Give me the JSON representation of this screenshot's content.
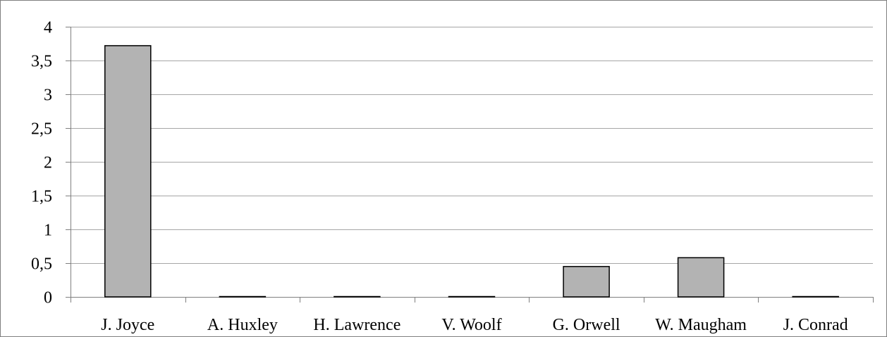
{
  "chart_data": {
    "type": "bar",
    "categories": [
      "J. Joyce",
      "A. Huxley",
      "H. Lawrence",
      "V. Woolf",
      "G. Orwell",
      "W. Maugham",
      "J. Conrad"
    ],
    "values": [
      3.72,
      0,
      0,
      0,
      0.45,
      0.58,
      0
    ],
    "ylim": [
      0,
      4
    ],
    "yticks": [
      "0",
      "0,5",
      "1",
      "1,5",
      "2",
      "2,5",
      "3",
      "3,5",
      "4"
    ],
    "grid": true,
    "legend": "none",
    "bar_color": "#b3b3b3",
    "bar_edge_color": "#000000",
    "grid_color": "#a6a6a6"
  }
}
